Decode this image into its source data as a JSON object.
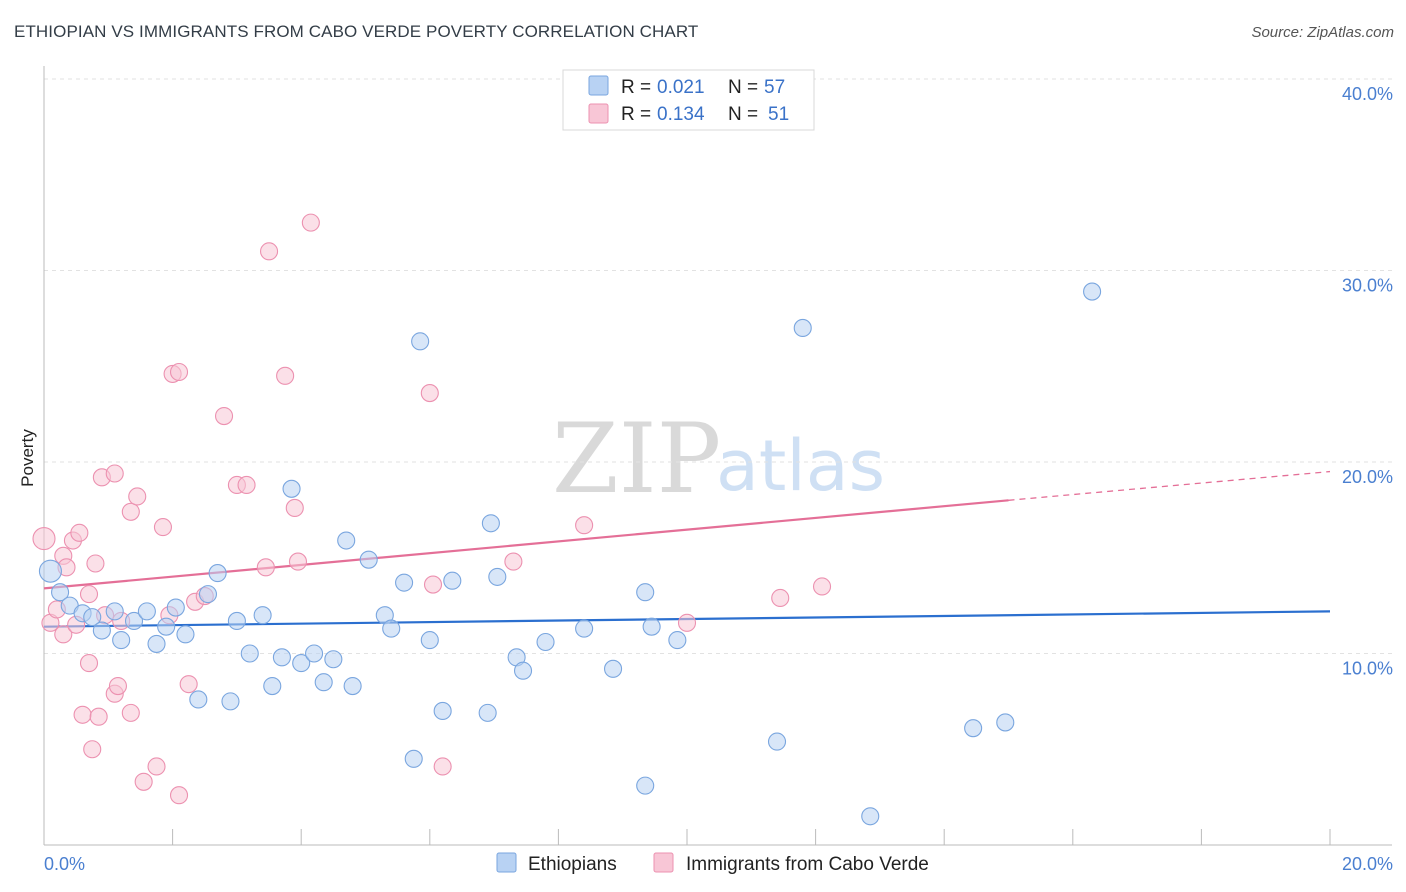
{
  "title": "ETHIOPIAN VS IMMIGRANTS FROM CABO VERDE POVERTY CORRELATION CHART",
  "source": "Source: ZipAtlas.com",
  "watermark": {
    "zip": "ZIP",
    "atlas": "atlas"
  },
  "legend": {
    "r_label": "R =",
    "n_label": "N =",
    "rows": [
      {
        "r": "0.021",
        "n": "57"
      },
      {
        "r": "0.134",
        "n": "51"
      }
    ]
  },
  "bottom_legend": [
    "Ethiopians",
    "Immigrants from Cabo Verde"
  ],
  "colors": {
    "ethiopians_fill": "#b8d2f3",
    "ethiopians_stroke": "#7aa6df",
    "ethiopians_line": "#2b6fcf",
    "cabo_fill": "#f8c6d6",
    "cabo_stroke": "#ec91b0",
    "cabo_line": "#e46f97"
  },
  "chart_data": {
    "type": "scatter",
    "title": "ETHIOPIAN VS IMMIGRANTS FROM CABO VERDE POVERTY CORRELATION CHART",
    "xlabel": "",
    "ylabel": "Poverty",
    "xlim": [
      0,
      20
    ],
    "ylim": [
      0,
      40
    ],
    "x_tick_labels": [
      "0.0%",
      "20.0%"
    ],
    "y_ticks": [
      10,
      20,
      30,
      40
    ],
    "y_tick_labels": [
      "10.0%",
      "20.0%",
      "30.0%",
      "40.0%"
    ],
    "grid": true,
    "legend_position": "top-center",
    "series": [
      {
        "name": "Ethiopians",
        "r": 0.021,
        "n": 57,
        "trend": {
          "x": [
            0,
            20
          ],
          "y": [
            11.4,
            12.2
          ]
        },
        "points": [
          [
            0.1,
            14.3
          ],
          [
            0.25,
            13.2
          ],
          [
            0.4,
            12.5
          ],
          [
            0.6,
            12.1
          ],
          [
            0.75,
            11.9
          ],
          [
            0.9,
            11.2
          ],
          [
            1.1,
            12.2
          ],
          [
            1.2,
            10.7
          ],
          [
            1.4,
            11.7
          ],
          [
            1.6,
            12.2
          ],
          [
            1.75,
            10.5
          ],
          [
            1.9,
            11.4
          ],
          [
            2.05,
            12.4
          ],
          [
            2.2,
            11.0
          ],
          [
            2.4,
            7.6
          ],
          [
            2.55,
            13.1
          ],
          [
            2.7,
            14.2
          ],
          [
            2.9,
            7.5
          ],
          [
            3.0,
            11.7
          ],
          [
            3.2,
            10.0
          ],
          [
            3.4,
            12.0
          ],
          [
            3.55,
            8.3
          ],
          [
            3.7,
            9.8
          ],
          [
            3.85,
            18.6
          ],
          [
            4.0,
            9.5
          ],
          [
            4.2,
            10.0
          ],
          [
            4.35,
            8.5
          ],
          [
            4.5,
            9.7
          ],
          [
            4.7,
            15.9
          ],
          [
            4.8,
            8.3
          ],
          [
            5.05,
            14.9
          ],
          [
            5.3,
            12.0
          ],
          [
            5.4,
            11.3
          ],
          [
            5.6,
            13.7
          ],
          [
            5.75,
            4.5
          ],
          [
            5.85,
            26.3
          ],
          [
            6.0,
            10.7
          ],
          [
            6.2,
            7.0
          ],
          [
            6.35,
            13.8
          ],
          [
            6.9,
            6.9
          ],
          [
            6.95,
            16.8
          ],
          [
            7.05,
            14.0
          ],
          [
            7.35,
            9.8
          ],
          [
            7.45,
            9.1
          ],
          [
            7.8,
            10.6
          ],
          [
            8.4,
            11.3
          ],
          [
            8.85,
            9.2
          ],
          [
            9.35,
            3.1
          ],
          [
            9.35,
            13.2
          ],
          [
            9.45,
            11.4
          ],
          [
            9.85,
            10.7
          ],
          [
            11.4,
            5.4
          ],
          [
            11.8,
            27.0
          ],
          [
            12.85,
            1.5
          ],
          [
            14.45,
            6.1
          ],
          [
            14.95,
            6.4
          ],
          [
            16.3,
            28.9
          ]
        ]
      },
      {
        "name": "Immigrants from Cabo Verde",
        "r": 0.134,
        "n": 51,
        "trend": {
          "x": [
            0,
            15
          ],
          "y": [
            13.4,
            18.0
          ]
        },
        "trend_dashed": {
          "x": [
            15,
            20
          ],
          "y": [
            18.0,
            19.5
          ]
        },
        "points": [
          [
            0.0,
            16.0
          ],
          [
            0.1,
            11.6
          ],
          [
            0.2,
            12.3
          ],
          [
            0.3,
            11.0
          ],
          [
            0.3,
            15.1
          ],
          [
            0.35,
            14.5
          ],
          [
            0.45,
            15.9
          ],
          [
            0.5,
            11.5
          ],
          [
            0.55,
            16.3
          ],
          [
            0.6,
            6.8
          ],
          [
            0.7,
            13.1
          ],
          [
            0.7,
            9.5
          ],
          [
            0.75,
            5.0
          ],
          [
            0.8,
            14.7
          ],
          [
            0.85,
            6.7
          ],
          [
            0.9,
            19.2
          ],
          [
            0.95,
            12.0
          ],
          [
            1.1,
            19.4
          ],
          [
            1.1,
            7.9
          ],
          [
            1.15,
            8.3
          ],
          [
            1.2,
            11.7
          ],
          [
            1.35,
            6.9
          ],
          [
            1.35,
            17.4
          ],
          [
            1.45,
            18.2
          ],
          [
            1.55,
            3.3
          ],
          [
            1.75,
            4.1
          ],
          [
            1.85,
            16.6
          ],
          [
            1.95,
            12.0
          ],
          [
            2.0,
            24.6
          ],
          [
            2.1,
            24.7
          ],
          [
            2.1,
            2.6
          ],
          [
            2.25,
            8.4
          ],
          [
            2.35,
            12.7
          ],
          [
            2.5,
            13.0
          ],
          [
            2.8,
            22.4
          ],
          [
            3.0,
            18.8
          ],
          [
            3.15,
            18.8
          ],
          [
            3.45,
            14.5
          ],
          [
            3.5,
            31.0
          ],
          [
            3.75,
            24.5
          ],
          [
            3.9,
            17.6
          ],
          [
            3.95,
            14.8
          ],
          [
            4.15,
            32.5
          ],
          [
            6.0,
            23.6
          ],
          [
            6.05,
            13.6
          ],
          [
            6.2,
            4.1
          ],
          [
            7.3,
            14.8
          ],
          [
            8.4,
            16.7
          ],
          [
            10.0,
            11.6
          ],
          [
            11.45,
            12.9
          ],
          [
            12.1,
            13.5
          ]
        ]
      }
    ]
  }
}
